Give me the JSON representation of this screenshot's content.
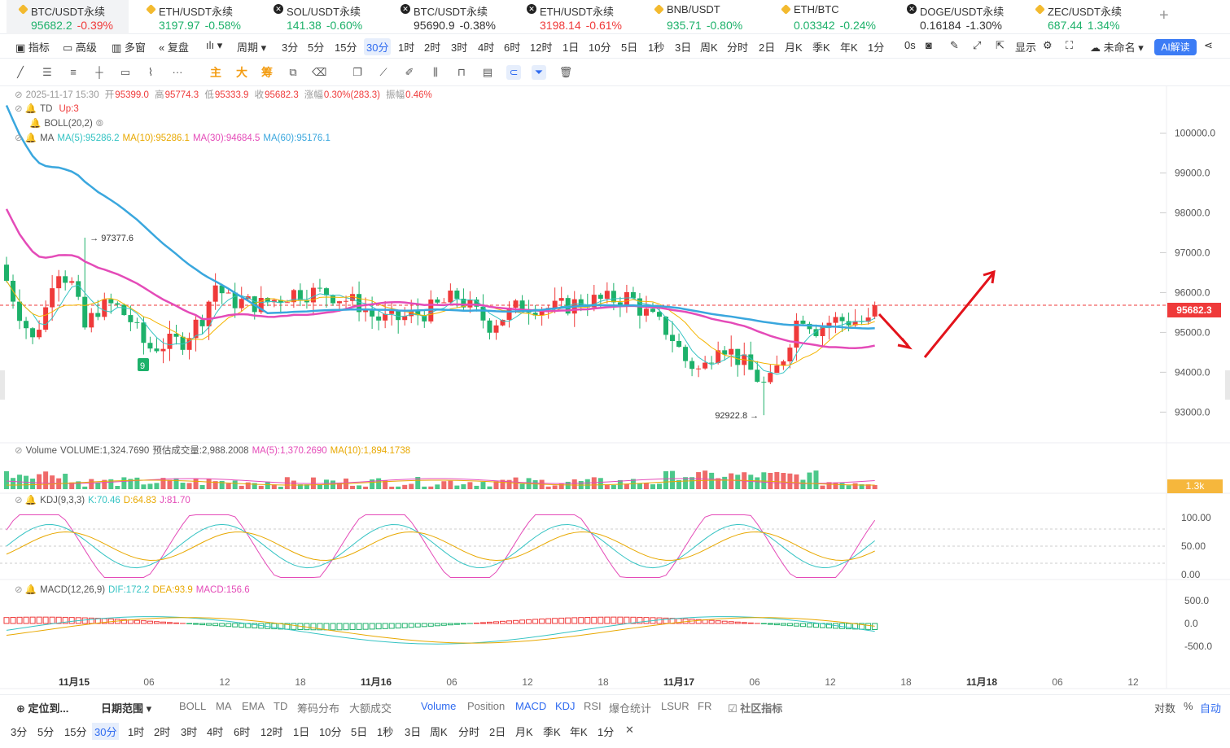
{
  "tickers": [
    {
      "name": "BTC/USDT永续",
      "price": "95682.2",
      "change": "-0.39%",
      "pcolor": "up",
      "ccolor": "dn",
      "icon": "binance-icon",
      "active": true
    },
    {
      "name": "ETH/USDT永续",
      "price": "3197.97",
      "change": "-0.58%",
      "pcolor": "up",
      "ccolor": "up",
      "icon": "binance-icon"
    },
    {
      "name": "SOL/USDT永续",
      "price": "141.38",
      "change": "-0.60%",
      "pcolor": "up",
      "ccolor": "up",
      "icon": "okx-icon"
    },
    {
      "name": "BTC/USDT永续",
      "price": "95690.9",
      "change": "-0.38%",
      "pcolor": "dark",
      "ccolor": "dark",
      "icon": "okx-icon"
    },
    {
      "name": "ETH/USDT永续",
      "price": "3198.14",
      "change": "-0.61%",
      "pcolor": "dn",
      "ccolor": "dn",
      "icon": "okx-icon"
    },
    {
      "name": "BNB/USDT",
      "price": "935.71",
      "change": "-0.80%",
      "pcolor": "up",
      "ccolor": "up",
      "icon": "binance-icon"
    },
    {
      "name": "ETH/BTC",
      "price": "0.03342",
      "change": "-0.24%",
      "pcolor": "up",
      "ccolor": "up",
      "icon": "binance-icon"
    },
    {
      "name": "DOGE/USDT永续",
      "price": "0.16184",
      "change": "-1.30%",
      "pcolor": "dark",
      "ccolor": "dark",
      "icon": "okx-icon"
    },
    {
      "name": "ZEC/USDT永续",
      "price": "687.44",
      "change": "1.34%",
      "pcolor": "up",
      "ccolor": "up",
      "icon": "binance-icon"
    }
  ],
  "toolbar": {
    "indicator": "指标",
    "advanced": "高级",
    "multi": "多窗",
    "replay": "复盘",
    "period": "周期",
    "intervals": [
      "3分",
      "5分",
      "15分",
      "30分",
      "1时",
      "2时",
      "3时",
      "4时",
      "6时",
      "12时",
      "1日",
      "10分",
      "5日",
      "1秒",
      "3日",
      "周K",
      "分时",
      "2日",
      "月K",
      "季K",
      "年K",
      "1分"
    ],
    "selected": "30分",
    "zero": "0s",
    "display": "显示",
    "unnamed": "未命名",
    "ai": "AI解读"
  },
  "drawtools": {
    "main": "主",
    "big": "大",
    "chip": "筹"
  },
  "ohlc": {
    "datetime": "2025-11-17 15:30",
    "open_label": "开",
    "open": "95399.0",
    "high_label": "高",
    "high": "95774.3",
    "low_label": "低",
    "low": "95333.9",
    "close_label": "收",
    "close": "95682.3",
    "chg_label": "涨幅",
    "chg": "0.30%(283.3)",
    "amp_label": "振幅",
    "amp": "0.46%"
  },
  "td": {
    "label": "TD",
    "value": "Up:3"
  },
  "boll": {
    "label": "BOLL(20,2)"
  },
  "ma": {
    "label": "MA",
    "ma5": "MA(5):95286.2",
    "ma10": "MA(10):95286.1",
    "ma30": "MA(30):94684.5",
    "ma60": "MA(60):95176.1"
  },
  "volume": {
    "label": "Volume",
    "vol": "VOLUME:1,324.7690",
    "est": "预估成交量:2,988.2008",
    "ma5": "MA(5):1,370.2690",
    "ma10": "MA(10):1,894.1738",
    "box": "1.3k"
  },
  "kdj": {
    "label": "KDJ(9,3,3)",
    "k": "K:70.46",
    "d": "D:64.83",
    "j": "J:81.70"
  },
  "macd": {
    "label": "MACD(12,26,9)",
    "dif": "DIF:172.2",
    "dea": "DEA:93.9",
    "macd": "MACD:156.6"
  },
  "price_axis": [
    "100000.0",
    "99000.0",
    "98000.0",
    "97000.0",
    "96000.0",
    "95000.0",
    "94000.0",
    "93000.0"
  ],
  "last_price": "95682.3",
  "high_mark": "97377.6",
  "low_mark": "92922.8",
  "td9": "9",
  "kdj_axis": [
    "100.00",
    "50.00",
    "0.00"
  ],
  "macd_axis": [
    "500.0",
    "0.0",
    "-500.0"
  ],
  "time_axis": [
    "11月15",
    "06",
    "12",
    "18",
    "11月16",
    "06",
    "12",
    "18",
    "11月17",
    "06",
    "12",
    "18",
    "11月18",
    "06",
    "12"
  ],
  "bottom1": {
    "locate": "定位到...",
    "range": "日期范围",
    "main_ind": [
      "BOLL",
      "MA",
      "EMA",
      "TD",
      "筹码分布",
      "大额成交"
    ],
    "sub_ind": [
      "Volume",
      "Position",
      "MACD",
      "KDJ",
      "RSI",
      "爆仓统计",
      "LSUR",
      "FR"
    ],
    "community": "社区指标",
    "log": "对数",
    "pct": "%",
    "auto": "自动"
  },
  "bottom2": {
    "intervals": [
      "3分",
      "5分",
      "15分",
      "30分",
      "1时",
      "2时",
      "3时",
      "4时",
      "6时",
      "12时",
      "1日",
      "10分",
      "5日",
      "1秒",
      "3日",
      "周K",
      "分时",
      "2日",
      "月K",
      "季K",
      "年K",
      "1分"
    ],
    "selected": "30分"
  },
  "colors": {
    "up": "#ef3a3a",
    "down": "#1db16a",
    "ma60": "#3aa7de",
    "ma30": "#e44bb8",
    "ma10": "#f4b400",
    "ma5": "#34c3c3"
  }
}
